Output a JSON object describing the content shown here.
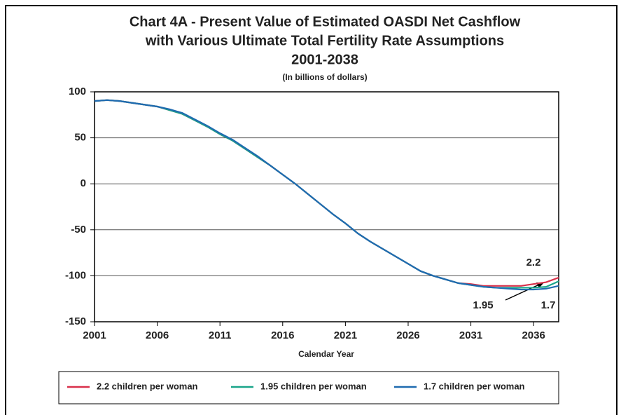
{
  "chart_data": {
    "type": "line",
    "title": [
      "Chart 4A - Present Value of Estimated OASDI Net Cashflow",
      "with Various Ultimate Total Fertility Rate Assumptions",
      "2001-2038"
    ],
    "subtitle": "(In billions of dollars)",
    "x_label": "Calendar Year",
    "x": [
      2001,
      2002,
      2003,
      2004,
      2005,
      2006,
      2007,
      2008,
      2009,
      2010,
      2011,
      2012,
      2013,
      2014,
      2015,
      2016,
      2017,
      2018,
      2019,
      2020,
      2021,
      2022,
      2023,
      2024,
      2025,
      2026,
      2027,
      2028,
      2029,
      2030,
      2031,
      2032,
      2033,
      2034,
      2035,
      2036,
      2037,
      2038
    ],
    "series": [
      {
        "name": "2.2 children per woman",
        "color": "#d9304a",
        "values": [
          90,
          91,
          90,
          88,
          86,
          84,
          80,
          76,
          69,
          62,
          54,
          47,
          38,
          29,
          20,
          10,
          0,
          -11,
          -22,
          -33,
          -43,
          -54,
          -63,
          -71,
          -79,
          -87,
          -95,
          -100,
          -104,
          -108,
          -109,
          -111,
          -111,
          -111,
          -111,
          -109,
          -107,
          -102
        ]
      },
      {
        "name": "1.95 children per woman",
        "color": "#1aa58a",
        "values": [
          90,
          91,
          90,
          88,
          86,
          84,
          80,
          76,
          69,
          62,
          54,
          47,
          38,
          29,
          20,
          10,
          0,
          -11,
          -22,
          -33,
          -43,
          -54,
          -63,
          -71,
          -79,
          -87,
          -95,
          -100,
          -104,
          -108,
          -110,
          -112,
          -113,
          -113,
          -113,
          -113,
          -112,
          -106
        ]
      },
      {
        "name": "1.7 children per woman",
        "color": "#1f6bb0",
        "values": [
          90,
          91,
          90,
          88,
          86,
          84,
          81,
          77,
          70,
          63,
          55,
          48,
          39,
          30,
          20,
          10,
          0,
          -11,
          -22,
          -33,
          -43,
          -54,
          -63,
          -71,
          -79,
          -87,
          -95,
          -100,
          -104,
          -108,
          -110,
          -112,
          -113,
          -114,
          -115,
          -115,
          -114,
          -111
        ]
      }
    ],
    "annotations": [
      "2.2",
      "1.95",
      "1.7"
    ],
    "xlim": [
      2001,
      2038
    ],
    "xticks": [
      2001,
      2006,
      2011,
      2016,
      2021,
      2026,
      2031,
      2036
    ],
    "ylim": [
      -150,
      100
    ],
    "yticks": [
      -150,
      -100,
      -50,
      0,
      50,
      100
    ],
    "grid": true,
    "legend": "bottom"
  }
}
